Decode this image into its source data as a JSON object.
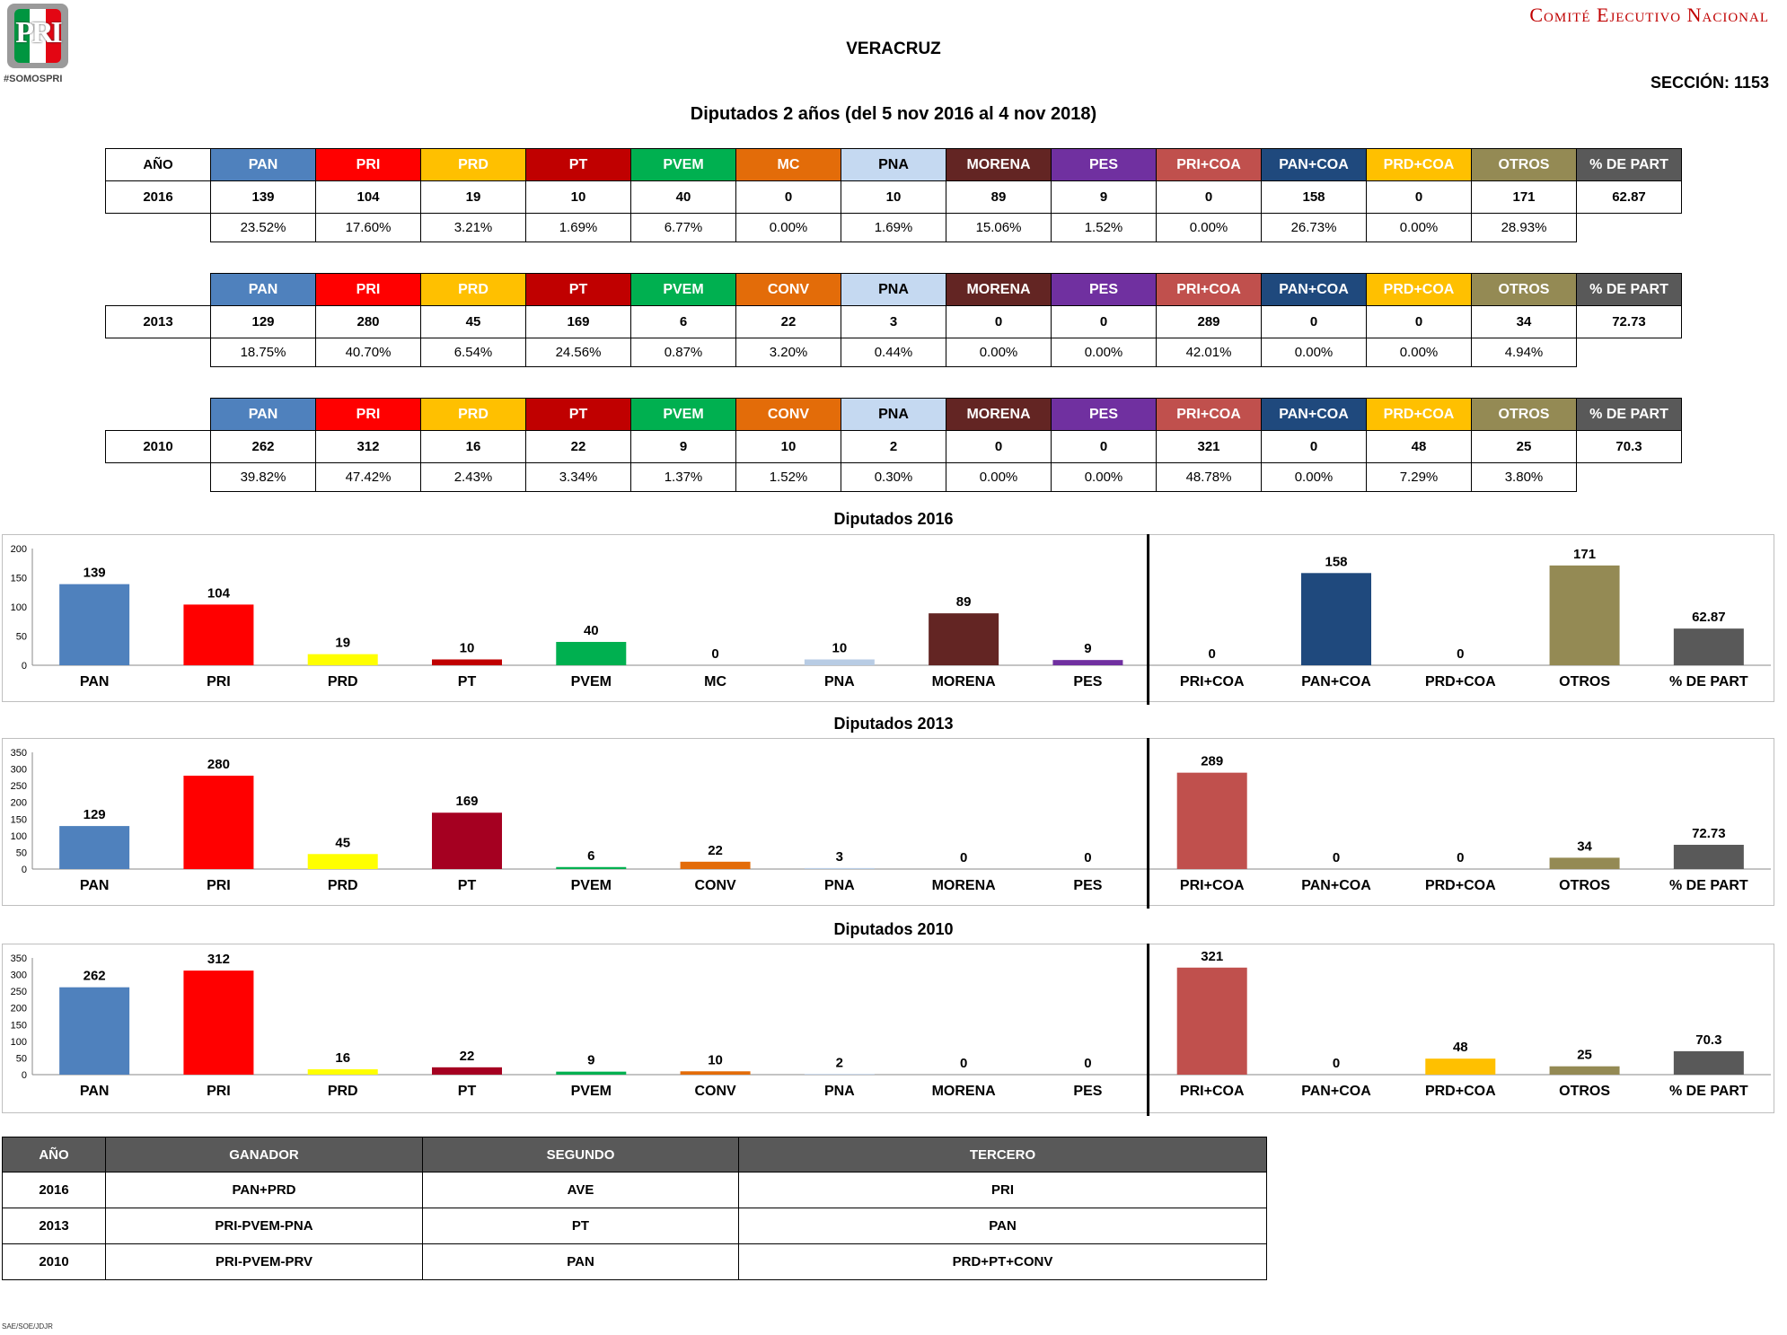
{
  "header": {
    "logo_text": "PRI",
    "logo_tag": "#SOMOSPRI",
    "committee": "Comité Ejecutivo Nacional",
    "state": "VERACRUZ",
    "section": "SECCIÓN: 1153",
    "subtitle": "Diputados 2 años (del 5 nov 2016 al 4 nov 2018)"
  },
  "colors": {
    "PAN": "#4F81BD",
    "PRI": "#FF0000",
    "PRD": "#FFC000",
    "PT": "#C00000",
    "PVEM": "#00B050",
    "MC": "#E36C09",
    "CONV": "#E36C09",
    "PNA": "#C5D9F1",
    "MORENA": "#632523",
    "PES": "#7030A0",
    "PRI+COA": "#C0504D",
    "PAN+COA": "#1F497D",
    "PRD+COA": "#FFC000",
    "OTROS": "#948A54",
    "% DE PART": "#595959"
  },
  "tables": [
    {
      "year_header": "AÑO",
      "year": "2016",
      "headers": [
        "PAN",
        "PRI",
        "PRD",
        "PT",
        "PVEM",
        "MC",
        "PNA",
        "MORENA",
        "PES",
        "PRI+COA",
        "PAN+COA",
        "PRD+COA",
        "OTROS",
        "% DE PART"
      ],
      "values": [
        "139",
        "104",
        "19",
        "10",
        "40",
        "0",
        "10",
        "89",
        "9",
        "0",
        "158",
        "0",
        "171",
        "62.87"
      ],
      "percents": [
        "23.52%",
        "17.60%",
        "3.21%",
        "1.69%",
        "6.77%",
        "0.00%",
        "1.69%",
        "15.06%",
        "1.52%",
        "0.00%",
        "26.73%",
        "0.00%",
        "28.93%"
      ]
    },
    {
      "year_header": "",
      "year": "2013",
      "headers": [
        "PAN",
        "PRI",
        "PRD",
        "PT",
        "PVEM",
        "CONV",
        "PNA",
        "MORENA",
        "PES",
        "PRI+COA",
        "PAN+COA",
        "PRD+COA",
        "OTROS",
        "% DE PART"
      ],
      "values": [
        "129",
        "280",
        "45",
        "169",
        "6",
        "22",
        "3",
        "0",
        "0",
        "289",
        "0",
        "0",
        "34",
        "72.73"
      ],
      "percents": [
        "18.75%",
        "40.70%",
        "6.54%",
        "24.56%",
        "0.87%",
        "3.20%",
        "0.44%",
        "0.00%",
        "0.00%",
        "42.01%",
        "0.00%",
        "0.00%",
        "4.94%"
      ]
    },
    {
      "year_header": "",
      "year": "2010",
      "headers": [
        "PAN",
        "PRI",
        "PRD",
        "PT",
        "PVEM",
        "CONV",
        "PNA",
        "MORENA",
        "PES",
        "PRI+COA",
        "PAN+COA",
        "PRD+COA",
        "OTROS",
        "% DE PART"
      ],
      "values": [
        "262",
        "312",
        "16",
        "22",
        "9",
        "10",
        "2",
        "0",
        "0",
        "321",
        "0",
        "48",
        "25",
        "70.3"
      ],
      "percents": [
        "39.82%",
        "47.42%",
        "2.43%",
        "3.34%",
        "1.37%",
        "1.52%",
        "0.30%",
        "0.00%",
        "0.00%",
        "48.78%",
        "0.00%",
        "7.29%",
        "3.80%"
      ]
    }
  ],
  "chart_data": [
    {
      "type": "bar",
      "title": "Diputados  2016",
      "categories": [
        "PAN",
        "PRI",
        "PRD",
        "PT",
        "PVEM",
        "MC",
        "PNA",
        "MORENA",
        "PES",
        "PRI+COA",
        "PAN+COA",
        "PRD+COA",
        "OTROS",
        "% DE PART"
      ],
      "values": [
        139,
        104,
        19,
        10,
        40,
        0,
        10,
        89,
        9,
        0,
        158,
        0,
        171,
        62.87
      ],
      "colors": [
        "#4F81BD",
        "#FF0000",
        "#FFFF00",
        "#C00000",
        "#00B050",
        "#E36C09",
        "#B8CCE4",
        "#632523",
        "#7030A0",
        "#C0504D",
        "#1F497D",
        "#FFC000",
        "#948A54",
        "#595959"
      ],
      "ylim": [
        0,
        200
      ],
      "yticks": [
        0,
        50,
        100,
        150,
        200
      ],
      "split_after": 9
    },
    {
      "type": "bar",
      "title": "Diputados 2013",
      "categories": [
        "PAN",
        "PRI",
        "PRD",
        "PT",
        "PVEM",
        "CONV",
        "PNA",
        "MORENA",
        "PES",
        "PRI+COA",
        "PAN+COA",
        "PRD+COA",
        "OTROS",
        "% DE PART"
      ],
      "values": [
        129,
        280,
        45,
        169,
        6,
        22,
        3,
        0,
        0,
        289,
        0,
        0,
        34,
        72.73
      ],
      "colors": [
        "#4F81BD",
        "#FF0000",
        "#FFFF00",
        "#A50021",
        "#00B050",
        "#E36C09",
        "#B8CCE4",
        "#632523",
        "#7030A0",
        "#C0504D",
        "#1F497D",
        "#FFC000",
        "#948A54",
        "#595959"
      ],
      "ylim": [
        0,
        350
      ],
      "yticks": [
        0,
        50,
        100,
        150,
        200,
        250,
        300,
        350
      ],
      "split_after": 9
    },
    {
      "type": "bar",
      "title": "Diputados 2010",
      "categories": [
        "PAN",
        "PRI",
        "PRD",
        "PT",
        "PVEM",
        "CONV",
        "PNA",
        "MORENA",
        "PES",
        "PRI+COA",
        "PAN+COA",
        "PRD+COA",
        "OTROS",
        "% DE PART"
      ],
      "values": [
        262,
        312,
        16,
        22,
        9,
        10,
        2,
        0,
        0,
        321,
        0,
        48,
        25,
        70.3
      ],
      "colors": [
        "#4F81BD",
        "#FF0000",
        "#FFFF00",
        "#A50021",
        "#00B050",
        "#E36C09",
        "#B8CCE4",
        "#632523",
        "#7030A0",
        "#C0504D",
        "#1F497D",
        "#FFC000",
        "#948A54",
        "#595959"
      ],
      "ylim": [
        0,
        350
      ],
      "yticks": [
        0,
        50,
        100,
        150,
        200,
        250,
        300,
        350
      ],
      "split_after": 9
    }
  ],
  "winners": {
    "headers": [
      "AÑO",
      "GANADOR",
      "SEGUNDO",
      "TERCERO"
    ],
    "rows": [
      [
        "2016",
        "PAN+PRD",
        "AVE",
        "PRI"
      ],
      [
        "2013",
        "PRI-PVEM-PNA",
        "PT",
        "PAN"
      ],
      [
        "2010",
        "PRI-PVEM-PRV",
        "PAN",
        "PRD+PT+CONV"
      ]
    ]
  },
  "footer": "SAE/SOE/JDJR"
}
